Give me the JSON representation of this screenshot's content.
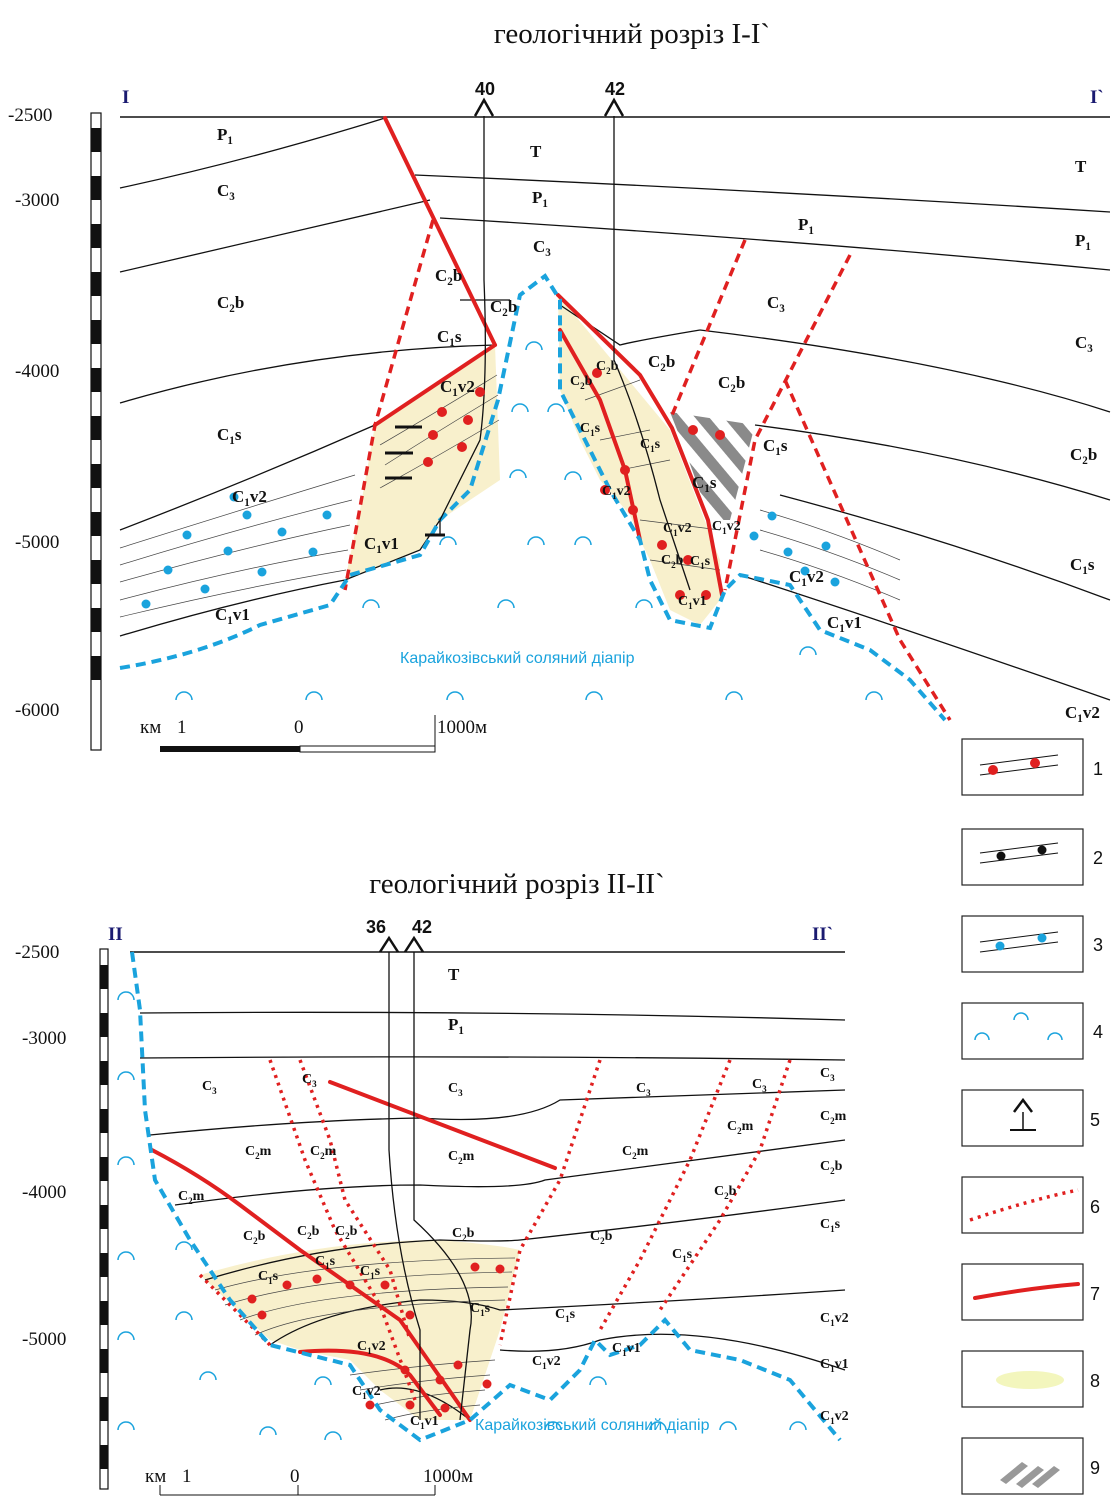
{
  "section1": {
    "title": "геологічний розріз I-I`",
    "start_label": "I",
    "end_label": "I`",
    "depth_labels": [
      "-2500",
      "-3000",
      "-4000",
      "-5000",
      "-6000"
    ],
    "wells": [
      "40",
      "42"
    ],
    "units_left": [
      "P1",
      "C3",
      "C2b",
      "C1s",
      "C1v2",
      "C1v1"
    ],
    "units_center": [
      "T",
      "P1",
      "C3",
      "C2b",
      "C2b",
      "C1s",
      "C1v2",
      "C1v1"
    ],
    "units_block": [
      "C2b",
      "C2b",
      "C1s",
      "C1v2",
      "C2b",
      "C1s",
      "C2b",
      "C1s",
      "C1s",
      "C1v2",
      "C1v2",
      "C1v1",
      "C3",
      "C2b",
      "C1s",
      "C1v2",
      "C1v1"
    ],
    "units_right": [
      "T",
      "P1",
      "P1",
      "C3",
      "C2b",
      "C1s",
      "C1v2"
    ],
    "diapir_label": "Карайкозівський соляний діапір",
    "scale": {
      "km": "км",
      "one": "1",
      "zero": "0",
      "end": "1000м"
    }
  },
  "section2": {
    "title": "геологічний розріз II-II`",
    "start_label": "II",
    "end_label": "II`",
    "depth_labels": [
      "-2500",
      "-3000",
      "-4000",
      "-5000"
    ],
    "wells": [
      "36",
      "42"
    ],
    "units_left": [
      "T",
      "P1",
      "C3",
      "C3",
      "C3",
      "C2m",
      "C2m",
      "C2m",
      "C2m",
      "C2b",
      "C2b",
      "C2b",
      "C2b",
      "C1s",
      "C1s",
      "C1s",
      "C1s",
      "C1v2",
      "C1v2",
      "C1v1"
    ],
    "units_right": [
      "C3",
      "C3",
      "C3",
      "C2m",
      "C2m",
      "C2m",
      "C2b",
      "C2b",
      "C1s",
      "C1s",
      "C1s",
      "C1v2",
      "C1v2",
      "C1v1",
      "C2b",
      "C1v2",
      "C1v1"
    ],
    "diapir_label": "Карайкозівський соляний діапір",
    "scale": {
      "km": "км",
      "one": "1",
      "zero": "0",
      "end": "1000м"
    }
  },
  "legend": [
    "1",
    "2",
    "3",
    "4",
    "5",
    "6",
    "7",
    "8",
    "9"
  ],
  "colors": {
    "fault": "#e02020",
    "salt": "#1aa3dd",
    "reservoir": "#f8f0cc",
    "hatch": "#888888"
  }
}
